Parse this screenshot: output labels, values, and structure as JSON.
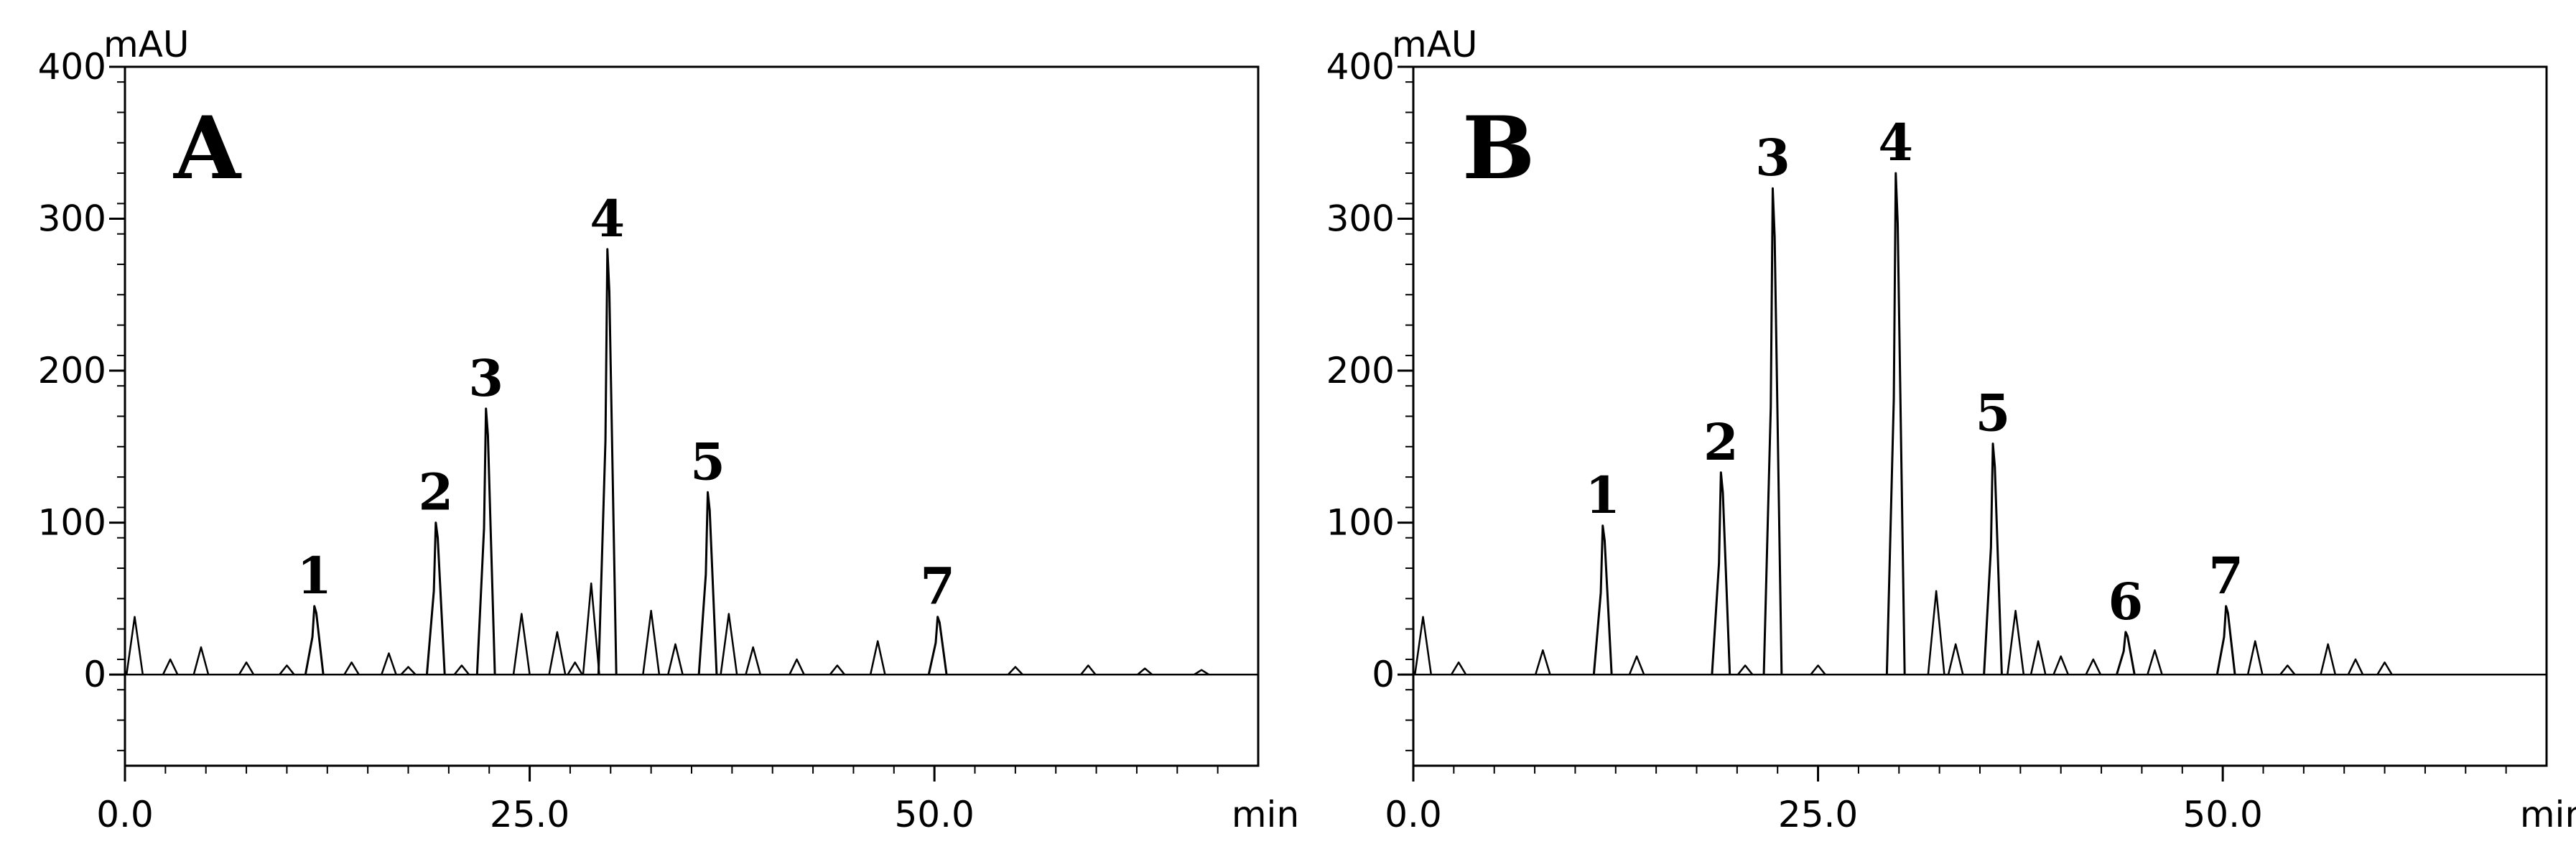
{
  "chart_data": [
    {
      "type": "line",
      "panel_label": "A",
      "ylabel": "mAU",
      "xlabel": "min",
      "xlim": [
        0,
        70
      ],
      "ylim": [
        -60,
        400
      ],
      "x_ticks": [
        0.0,
        25.0,
        50.0
      ],
      "x_tick_labels": [
        "0.0",
        "25.0",
        "50.0"
      ],
      "y_ticks": [
        0,
        100,
        200,
        300,
        400
      ],
      "y_tick_labels": [
        "0",
        "100",
        "200",
        "300",
        "400"
      ],
      "grid": false,
      "peaks": [
        {
          "label": "1",
          "x": 11.7,
          "y": 45
        },
        {
          "label": "2",
          "x": 19.2,
          "y": 100
        },
        {
          "label": "3",
          "x": 22.3,
          "y": 175
        },
        {
          "label": "4",
          "x": 29.8,
          "y": 280
        },
        {
          "label": "5",
          "x": 36.0,
          "y": 120
        },
        {
          "label": "7",
          "x": 50.2,
          "y": 38
        }
      ],
      "minor_peaks": [
        {
          "x": 0.6,
          "y": 38
        },
        {
          "x": 2.8,
          "y": 10
        },
        {
          "x": 4.7,
          "y": 18
        },
        {
          "x": 7.5,
          "y": 8
        },
        {
          "x": 10.0,
          "y": 6
        },
        {
          "x": 14.0,
          "y": 8
        },
        {
          "x": 16.3,
          "y": 14
        },
        {
          "x": 17.5,
          "y": 5
        },
        {
          "x": 20.8,
          "y": 6
        },
        {
          "x": 24.5,
          "y": 40
        },
        {
          "x": 26.7,
          "y": 28
        },
        {
          "x": 27.8,
          "y": 8
        },
        {
          "x": 28.8,
          "y": 60
        },
        {
          "x": 32.5,
          "y": 42
        },
        {
          "x": 34.0,
          "y": 20
        },
        {
          "x": 37.3,
          "y": 40
        },
        {
          "x": 38.8,
          "y": 18
        },
        {
          "x": 41.5,
          "y": 10
        },
        {
          "x": 44.0,
          "y": 6
        },
        {
          "x": 46.5,
          "y": 22
        },
        {
          "x": 55.0,
          "y": 5
        },
        {
          "x": 59.5,
          "y": 6
        },
        {
          "x": 63.0,
          "y": 4
        },
        {
          "x": 66.5,
          "y": 3
        }
      ]
    },
    {
      "type": "line",
      "panel_label": "B",
      "ylabel": "mAU",
      "xlabel": "min",
      "xlim": [
        0,
        70
      ],
      "ylim": [
        -60,
        400
      ],
      "x_ticks": [
        0.0,
        25.0,
        50.0
      ],
      "x_tick_labels": [
        "0.0",
        "25.0",
        "50.0"
      ],
      "y_ticks": [
        0,
        100,
        200,
        300,
        400
      ],
      "y_tick_labels": [
        "0",
        "100",
        "200",
        "300",
        "400"
      ],
      "grid": false,
      "peaks": [
        {
          "label": "1",
          "x": 11.7,
          "y": 98
        },
        {
          "label": "2",
          "x": 19.0,
          "y": 133
        },
        {
          "label": "3",
          "x": 22.2,
          "y": 320
        },
        {
          "label": "4",
          "x": 29.8,
          "y": 330
        },
        {
          "label": "5",
          "x": 35.8,
          "y": 152
        },
        {
          "label": "6",
          "x": 44.0,
          "y": 28
        },
        {
          "label": "7",
          "x": 50.2,
          "y": 45
        }
      ],
      "minor_peaks": [
        {
          "x": 0.6,
          "y": 38
        },
        {
          "x": 2.8,
          "y": 8
        },
        {
          "x": 8.0,
          "y": 16
        },
        {
          "x": 13.8,
          "y": 12
        },
        {
          "x": 20.5,
          "y": 6
        },
        {
          "x": 25.0,
          "y": 6
        },
        {
          "x": 32.3,
          "y": 55
        },
        {
          "x": 33.5,
          "y": 20
        },
        {
          "x": 37.2,
          "y": 42
        },
        {
          "x": 38.6,
          "y": 22
        },
        {
          "x": 40.0,
          "y": 12
        },
        {
          "x": 42.0,
          "y": 10
        },
        {
          "x": 45.8,
          "y": 16
        },
        {
          "x": 52.0,
          "y": 22
        },
        {
          "x": 54.0,
          "y": 6
        },
        {
          "x": 56.5,
          "y": 20
        },
        {
          "x": 58.2,
          "y": 10
        },
        {
          "x": 60.0,
          "y": 8
        }
      ]
    }
  ]
}
